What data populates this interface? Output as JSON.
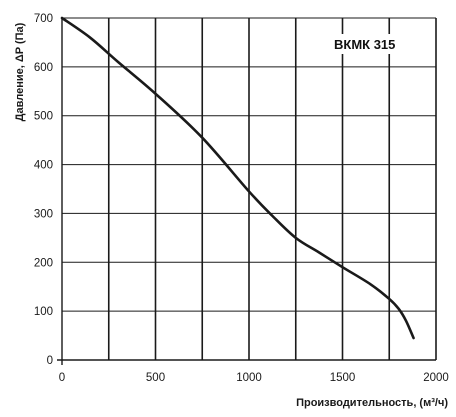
{
  "chart_data": {
    "type": "line",
    "title": "",
    "xlabel": "Производительность, (м³/ч)",
    "ylabel": "Давление, ΔP (Па)",
    "xlim": [
      0,
      2000
    ],
    "ylim": [
      0,
      700
    ],
    "x_ticks": [
      "0",
      "500",
      "1000",
      "1500",
      "2000"
    ],
    "y_ticks": [
      "0",
      "100",
      "200",
      "300",
      "400",
      "500",
      "600",
      "700"
    ],
    "x_grid": [
      250,
      500,
      750,
      1000,
      1250,
      1500,
      1750,
      2000
    ],
    "y_grid": [
      0,
      100,
      200,
      300,
      400,
      500,
      600,
      700
    ],
    "grid": true,
    "legend_position": "top-right",
    "series": [
      {
        "name": "ВКМК 315",
        "x": [
          0,
          150,
          300,
          500,
          750,
          1000,
          1125,
          1250,
          1375,
          1500,
          1650,
          1750,
          1800,
          1840,
          1880
        ],
        "y": [
          700,
          660,
          610,
          545,
          455,
          345,
          295,
          250,
          220,
          190,
          155,
          125,
          105,
          80,
          45
        ]
      }
    ],
    "colors": {
      "line": "#1a1a1a",
      "grid": "#1a1a1a",
      "background": "#ffffff"
    }
  }
}
